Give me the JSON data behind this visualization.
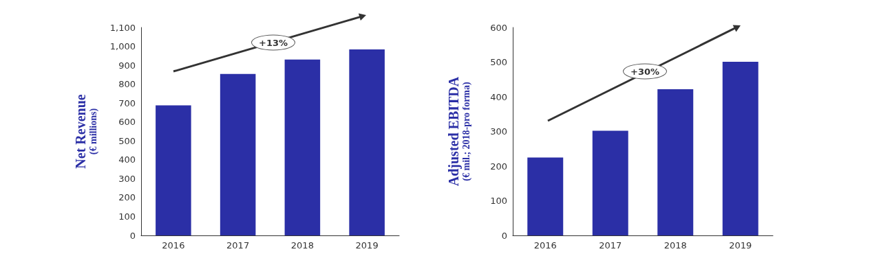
{
  "chart_data": [
    {
      "type": "bar",
      "ylabel": "Net Revenue\n(€ millions)",
      "categories": [
        "2016",
        "2017",
        "2018",
        "2019"
      ],
      "series": [
        {
          "color": "#2b2fa6",
          "values": [
            688,
            854,
            930,
            984
          ]
        }
      ],
      "ylim": [
        0,
        1100
      ],
      "yticks": [
        0,
        100,
        200,
        300,
        400,
        500,
        600,
        700,
        800,
        900,
        {
          "value": 1000,
          "label": "1,000"
        },
        {
          "value": 1100,
          "label": "1,100"
        }
      ],
      "grid": false,
      "annotations": [
        "+13%"
      ]
    },
    {
      "type": "bar",
      "ylabel": "Adjusted EBITDA\n(€ mil.; 2018-pro forma)",
      "categories": [
        "2016",
        "2017",
        "2018",
        "2019"
      ],
      "series": [
        {
          "color": "#2b2fa6",
          "values": [
            225,
            302,
            422,
            501
          ]
        }
      ],
      "ylim": [
        0,
        600
      ],
      "yticks": [
        0,
        100,
        200,
        300,
        400,
        500,
        600
      ],
      "grid": false,
      "annotations": [
        "+30%"
      ]
    }
  ]
}
